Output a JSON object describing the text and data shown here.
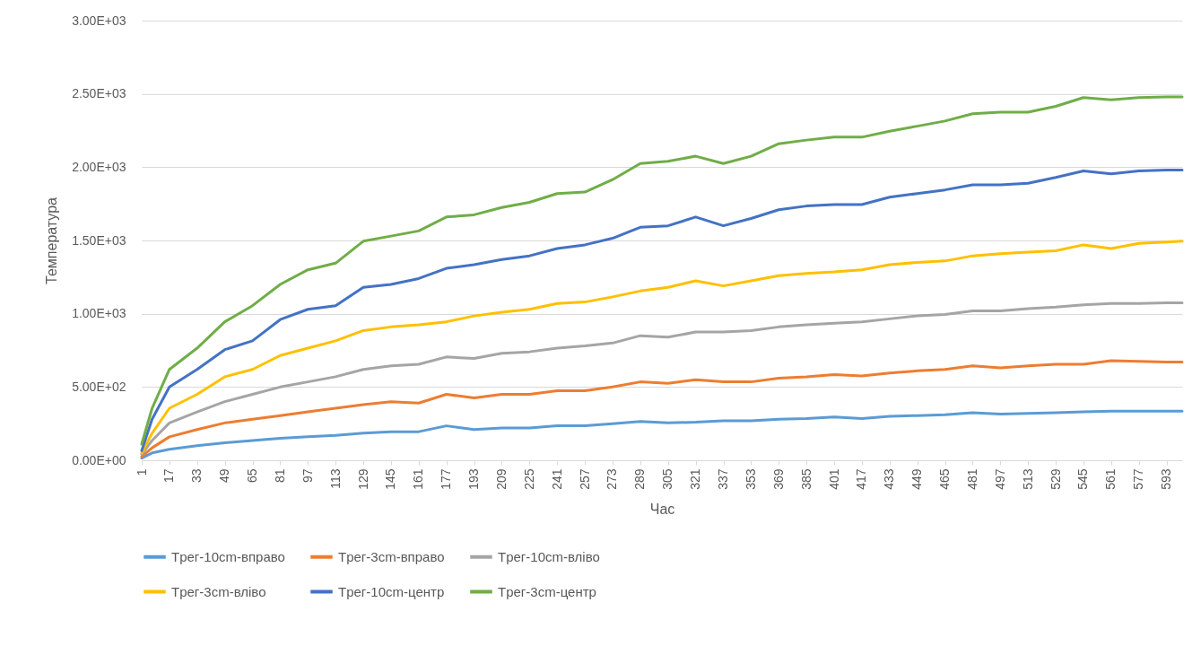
{
  "chart_data": {
    "type": "line",
    "xlabel": "Час",
    "ylabel": "Температура",
    "legend": "bottom",
    "grid": "y",
    "x": [
      1,
      7,
      17,
      33,
      49,
      65,
      81,
      97,
      113,
      129,
      145,
      161,
      177,
      193,
      209,
      225,
      241,
      257,
      273,
      289,
      305,
      321,
      337,
      353,
      369,
      385,
      401,
      417,
      433,
      449,
      465,
      481,
      497,
      513,
      529,
      545,
      561,
      577,
      593,
      602
    ],
    "xlim": [
      1,
      602
    ],
    "xticks": [
      1,
      17,
      33,
      49,
      65,
      81,
      97,
      113,
      129,
      145,
      161,
      177,
      193,
      209,
      225,
      241,
      257,
      273,
      289,
      305,
      321,
      337,
      353,
      369,
      385,
      401,
      417,
      433,
      449,
      465,
      481,
      497,
      513,
      529,
      545,
      561,
      577,
      593
    ],
    "ylim": [
      0,
      3000
    ],
    "yticks": [
      {
        "value": 0,
        "label": "0.00E+00"
      },
      {
        "value": 500,
        "label": "5.00E+02"
      },
      {
        "value": 1000,
        "label": "1.00E+03"
      },
      {
        "value": 1500,
        "label": "1.50E+03"
      },
      {
        "value": 2000,
        "label": "2.00E+03"
      },
      {
        "value": 2500,
        "label": "2.50E+03"
      },
      {
        "value": 3000,
        "label": "3.00E+03"
      }
    ],
    "series": [
      {
        "name": "Tрег-10cm-вправо",
        "color": "#5b9bd5",
        "values": [
          15,
          50,
          75,
          100,
          120,
          135,
          150,
          160,
          170,
          185,
          195,
          195,
          235,
          210,
          220,
          220,
          235,
          235,
          250,
          265,
          255,
          260,
          270,
          270,
          280,
          285,
          295,
          285,
          300,
          305,
          310,
          325,
          315,
          320,
          325,
          330,
          335,
          335,
          335,
          335
        ]
      },
      {
        "name": "Tрег-3cm-вправо",
        "color": "#ed7d31",
        "values": [
          25,
          85,
          160,
          210,
          255,
          280,
          305,
          330,
          355,
          380,
          400,
          390,
          450,
          425,
          450,
          450,
          475,
          475,
          500,
          535,
          525,
          550,
          535,
          535,
          560,
          570,
          585,
          575,
          595,
          610,
          620,
          645,
          630,
          645,
          655,
          655,
          680,
          675,
          670,
          670
        ]
      },
      {
        "name": "Tрег-10cm-вліво",
        "color": "#a5a5a5",
        "values": [
          40,
          135,
          255,
          330,
          400,
          450,
          500,
          535,
          570,
          620,
          645,
          655,
          705,
          695,
          730,
          740,
          765,
          780,
          800,
          850,
          840,
          875,
          875,
          885,
          910,
          925,
          935,
          945,
          965,
          985,
          995,
          1020,
          1020,
          1035,
          1045,
          1060,
          1070,
          1070,
          1075,
          1075
        ]
      },
      {
        "name": "Tрег-3cm-вліво",
        "color": "#ffc000",
        "values": [
          50,
          185,
          355,
          450,
          570,
          620,
          715,
          765,
          815,
          885,
          910,
          925,
          945,
          985,
          1010,
          1030,
          1070,
          1080,
          1115,
          1155,
          1180,
          1225,
          1190,
          1225,
          1260,
          1275,
          1285,
          1300,
          1335,
          1350,
          1360,
          1395,
          1410,
          1420,
          1430,
          1470,
          1445,
          1480,
          1490,
          1495
        ]
      },
      {
        "name": "Tрег-10cm-центр",
        "color": "#4472c4",
        "values": [
          65,
          280,
          500,
          620,
          755,
          815,
          960,
          1030,
          1055,
          1180,
          1200,
          1240,
          1310,
          1335,
          1370,
          1395,
          1445,
          1470,
          1515,
          1590,
          1600,
          1660,
          1600,
          1650,
          1710,
          1735,
          1745,
          1745,
          1795,
          1820,
          1845,
          1880,
          1880,
          1890,
          1930,
          1975,
          1955,
          1975,
          1980,
          1980
        ]
      },
      {
        "name": "Tрег-3cm-центр",
        "color": "#70ad47",
        "values": [
          110,
          355,
          620,
          765,
          945,
          1055,
          1200,
          1300,
          1345,
          1495,
          1530,
          1565,
          1660,
          1675,
          1725,
          1760,
          1820,
          1830,
          1915,
          2025,
          2040,
          2075,
          2025,
          2075,
          2160,
          2185,
          2205,
          2205,
          2245,
          2280,
          2315,
          2365,
          2375,
          2375,
          2415,
          2475,
          2460,
          2475,
          2480,
          2480
        ]
      }
    ]
  }
}
